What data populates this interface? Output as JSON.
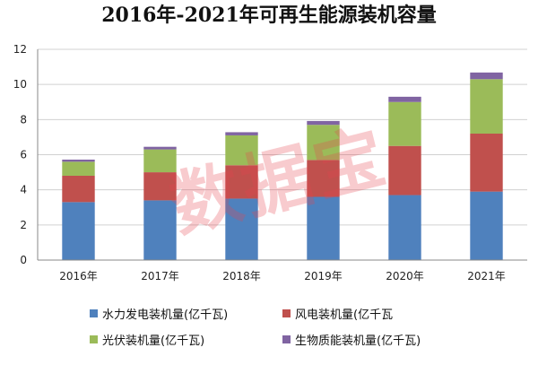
{
  "chart_data": {
    "type": "bar",
    "stacked": true,
    "title": "2016年-2021年可再生能源装机容量",
    "categories": [
      "2016年",
      "2017年",
      "2018年",
      "2019年",
      "2020年",
      "2021年"
    ],
    "series": [
      {
        "name": "水力发电装机量(亿千瓦)",
        "color": "#4F81BD",
        "values": [
          3.3,
          3.4,
          3.5,
          3.6,
          3.7,
          3.9
        ]
      },
      {
        "name": "风电装机量(亿千瓦",
        "color": "#C0504D",
        "values": [
          1.5,
          1.6,
          1.9,
          2.1,
          2.8,
          3.3
        ]
      },
      {
        "name": "光伏装机量(亿千瓦)",
        "color": "#9BBB59",
        "values": [
          0.8,
          1.3,
          1.7,
          2.0,
          2.5,
          3.1
        ]
      },
      {
        "name": "生物质能装机量(亿千瓦)",
        "color": "#8064A2",
        "values": [
          0.12,
          0.15,
          0.18,
          0.22,
          0.3,
          0.38
        ]
      }
    ],
    "ylim": [
      0,
      12
    ],
    "yticks": [
      0,
      2,
      4,
      6,
      8,
      10,
      12
    ],
    "grid": true,
    "legend_position": "bottom"
  },
  "watermark": "数据宝"
}
